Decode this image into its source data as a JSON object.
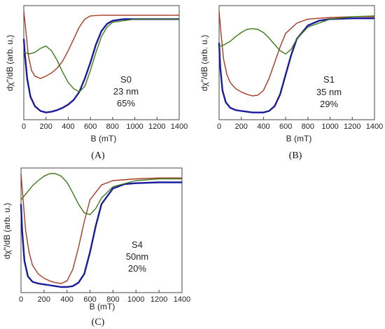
{
  "chart_data": [
    {
      "type": "line",
      "panel_label": "(A)",
      "xlabel": "B (mT)",
      "ylabel": "dχ\"/dB (arb. u.)",
      "xlim": [
        0,
        1400
      ],
      "x_ticks": [
        "0",
        "200",
        "400",
        "600",
        "800",
        "1000",
        "1200",
        "1400"
      ],
      "ylim": [
        -1.0,
        0.3
      ],
      "y_ticks_shown": false,
      "grid": false,
      "annotation": [
        "S0",
        "23 nm",
        "65%"
      ],
      "series": [
        {
          "color": "#1a1a9c",
          "x": [
            0,
            10,
            30,
            60,
            100,
            150,
            200,
            250,
            300,
            350,
            400,
            450,
            500,
            550,
            600,
            650,
            700,
            750,
            800,
            900,
            1000,
            1200,
            1400
          ],
          "y": [
            -0.05,
            -0.25,
            -0.55,
            -0.78,
            -0.9,
            -0.96,
            -0.98,
            -0.97,
            -0.95,
            -0.92,
            -0.88,
            -0.82,
            -0.72,
            -0.55,
            -0.35,
            -0.12,
            0.05,
            0.14,
            0.18,
            0.2,
            0.2,
            0.2,
            0.2
          ]
        },
        {
          "color": "#a83a22",
          "x": [
            0,
            15,
            40,
            70,
            100,
            150,
            200,
            250,
            300,
            350,
            400,
            450,
            500,
            550,
            600,
            700,
            800,
            1000,
            1200,
            1400
          ],
          "y": [
            0.3,
            0.1,
            -0.25,
            -0.45,
            -0.52,
            -0.55,
            -0.52,
            -0.48,
            -0.42,
            -0.33,
            -0.2,
            -0.05,
            0.1,
            0.2,
            0.24,
            0.25,
            0.25,
            0.25,
            0.25,
            0.25
          ]
        },
        {
          "color": "#3d7a1a",
          "x": [
            0,
            50,
            100,
            150,
            200,
            250,
            300,
            350,
            400,
            450,
            500,
            550,
            600,
            650,
            700,
            750,
            800,
            1000,
            1200,
            1400
          ],
          "y": [
            -0.22,
            -0.24,
            -0.22,
            -0.17,
            -0.14,
            -0.2,
            -0.32,
            -0.47,
            -0.6,
            -0.68,
            -0.72,
            -0.65,
            -0.45,
            -0.22,
            -0.02,
            0.1,
            0.16,
            0.2,
            0.2,
            0.2
          ]
        }
      ]
    },
    {
      "type": "line",
      "panel_label": "(B)",
      "xlabel": "B (mT)",
      "ylabel": "dχ\"/dB (arb. u.)",
      "xlim": [
        0,
        1400
      ],
      "x_ticks": [
        "0",
        "200",
        "400",
        "600",
        "800",
        "1000",
        "1200",
        "1400"
      ],
      "ylim": [
        -1.0,
        0.3
      ],
      "y_ticks_shown": false,
      "grid": false,
      "annotation": [
        "S1",
        "35 nm",
        "29%"
      ],
      "series": [
        {
          "color": "#1a1a9c",
          "x": [
            0,
            10,
            30,
            60,
            100,
            150,
            200,
            250,
            300,
            350,
            400,
            450,
            500,
            550,
            600,
            650,
            700,
            800,
            900,
            1000,
            1200,
            1400
          ],
          "y": [
            -0.1,
            -0.4,
            -0.7,
            -0.85,
            -0.92,
            -0.95,
            -0.96,
            -0.97,
            -0.98,
            -0.98,
            -0.98,
            -0.96,
            -0.9,
            -0.75,
            -0.5,
            -0.25,
            -0.05,
            0.12,
            0.18,
            0.2,
            0.21,
            0.21
          ]
        },
        {
          "color": "#a83a22",
          "x": [
            0,
            15,
            40,
            70,
            100,
            150,
            200,
            250,
            300,
            350,
            400,
            450,
            500,
            550,
            600,
            700,
            800,
            1000,
            1200,
            1400
          ],
          "y": [
            0.3,
            0.05,
            -0.3,
            -0.5,
            -0.6,
            -0.68,
            -0.72,
            -0.75,
            -0.77,
            -0.76,
            -0.7,
            -0.55,
            -0.35,
            -0.15,
            0.02,
            0.15,
            0.2,
            0.22,
            0.23,
            0.23
          ]
        },
        {
          "color": "#3d7a1a",
          "x": [
            0,
            50,
            100,
            150,
            200,
            250,
            300,
            350,
            400,
            450,
            500,
            550,
            600,
            650,
            700,
            800,
            1000,
            1200,
            1400
          ],
          "y": [
            -0.15,
            -0.12,
            -0.08,
            -0.02,
            0.03,
            0.07,
            0.08,
            0.07,
            0.03,
            -0.04,
            -0.12,
            -0.2,
            -0.24,
            -0.18,
            -0.05,
            0.1,
            0.2,
            0.23,
            0.24
          ]
        }
      ]
    },
    {
      "type": "line",
      "panel_label": "(C)",
      "xlabel": "B (mT)",
      "ylabel": "dχ\"/dB (arb. u.)",
      "xlim": [
        0,
        1400
      ],
      "x_ticks": [
        "0",
        "200",
        "400",
        "600",
        "800",
        "1000",
        "1200",
        "1400"
      ],
      "ylim": [
        -1.0,
        0.3
      ],
      "y_ticks_shown": false,
      "grid": false,
      "annotation": [
        "S4",
        "50nm",
        "20%"
      ],
      "series": [
        {
          "color": "#1a1a9c",
          "x": [
            0,
            10,
            30,
            60,
            100,
            150,
            200,
            250,
            300,
            350,
            400,
            450,
            500,
            550,
            600,
            650,
            700,
            800,
            900,
            1000,
            1200,
            1400
          ],
          "y": [
            -0.05,
            -0.35,
            -0.7,
            -0.88,
            -0.94,
            -0.96,
            -0.97,
            -0.98,
            -0.99,
            -1.0,
            -1.0,
            -0.99,
            -0.95,
            -0.85,
            -0.6,
            -0.3,
            -0.05,
            0.13,
            0.18,
            0.19,
            0.2,
            0.2
          ]
        },
        {
          "color": "#a83a22",
          "x": [
            0,
            15,
            40,
            70,
            100,
            150,
            200,
            250,
            300,
            350,
            400,
            450,
            500,
            550,
            600,
            700,
            800,
            1000,
            1200,
            1400
          ],
          "y": [
            0.3,
            0.05,
            -0.35,
            -0.6,
            -0.75,
            -0.85,
            -0.9,
            -0.93,
            -0.95,
            -0.96,
            -0.93,
            -0.8,
            -0.55,
            -0.25,
            0.0,
            0.17,
            0.22,
            0.24,
            0.25,
            0.25
          ]
        },
        {
          "color": "#3d7a1a",
          "x": [
            0,
            50,
            100,
            150,
            200,
            250,
            300,
            350,
            400,
            450,
            500,
            550,
            600,
            650,
            700,
            800,
            1000,
            1200,
            1400
          ],
          "y": [
            0.0,
            0.08,
            0.16,
            0.22,
            0.27,
            0.3,
            0.3,
            0.27,
            0.2,
            0.08,
            -0.05,
            -0.15,
            -0.17,
            -0.1,
            0.02,
            0.15,
            0.22,
            0.24,
            0.24
          ]
        }
      ]
    }
  ]
}
